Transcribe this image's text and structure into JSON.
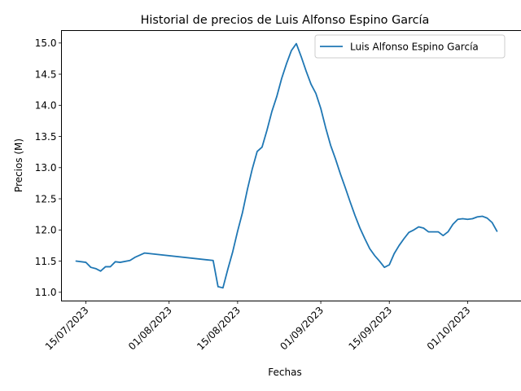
{
  "chart_data": {
    "type": "line",
    "title": "Historial de precios de Luis Alfonso Espino García",
    "xlabel": "Fechas",
    "ylabel": "Precios (M)",
    "ylim": [
      10.86,
      15.2
    ],
    "xlim": [
      "2023-07-10",
      "2023-10-12"
    ],
    "grid": false,
    "legend_position": "top-right",
    "x_ticks": [
      "2023-07-15",
      "2023-08-01",
      "2023-08-15",
      "2023-09-01",
      "2023-09-15",
      "2023-10-01"
    ],
    "x_tick_labels": [
      "15/07/2023",
      "01/08/2023",
      "15/08/2023",
      "01/09/2023",
      "15/09/2023",
      "01/10/2023"
    ],
    "y_ticks": [
      11.0,
      11.5,
      12.0,
      12.5,
      13.0,
      13.5,
      14.0,
      14.5,
      15.0
    ],
    "y_tick_labels": [
      "11.0",
      "11.5",
      "12.0",
      "12.5",
      "13.0",
      "13.5",
      "14.0",
      "14.5",
      "15.0"
    ],
    "series": [
      {
        "name": "Luis Alfonso Espino García",
        "color": "#1f77b4",
        "points": [
          [
            "2023-07-13",
            11.5
          ],
          [
            "2023-07-15",
            11.48
          ],
          [
            "2023-07-16",
            11.4
          ],
          [
            "2023-07-17",
            11.38
          ],
          [
            "2023-07-18",
            11.34
          ],
          [
            "2023-07-19",
            11.41
          ],
          [
            "2023-07-20",
            11.41
          ],
          [
            "2023-07-21",
            11.49
          ],
          [
            "2023-07-22",
            11.48
          ],
          [
            "2023-07-24",
            11.51
          ],
          [
            "2023-07-25",
            11.56
          ],
          [
            "2023-07-27",
            11.63
          ],
          [
            "2023-08-10",
            11.51
          ],
          [
            "2023-08-11",
            11.09
          ],
          [
            "2023-08-12",
            11.07
          ],
          [
            "2023-08-13",
            11.37
          ],
          [
            "2023-08-14",
            11.65
          ],
          [
            "2023-08-15",
            11.98
          ],
          [
            "2023-08-16",
            12.28
          ],
          [
            "2023-08-17",
            12.65
          ],
          [
            "2023-08-18",
            12.98
          ],
          [
            "2023-08-19",
            13.26
          ],
          [
            "2023-08-20",
            13.33
          ],
          [
            "2023-08-21",
            13.6
          ],
          [
            "2023-08-22",
            13.9
          ],
          [
            "2023-08-23",
            14.14
          ],
          [
            "2023-08-24",
            14.43
          ],
          [
            "2023-08-25",
            14.67
          ],
          [
            "2023-08-26",
            14.88
          ],
          [
            "2023-08-27",
            14.99
          ],
          [
            "2023-08-28",
            14.78
          ],
          [
            "2023-08-29",
            14.55
          ],
          [
            "2023-08-30",
            14.34
          ],
          [
            "2023-08-31",
            14.19
          ],
          [
            "2023-09-01",
            13.95
          ],
          [
            "2023-09-02",
            13.64
          ],
          [
            "2023-09-03",
            13.36
          ],
          [
            "2023-09-04",
            13.14
          ],
          [
            "2023-09-05",
            12.9
          ],
          [
            "2023-09-06",
            12.68
          ],
          [
            "2023-09-07",
            12.45
          ],
          [
            "2023-09-08",
            12.23
          ],
          [
            "2023-09-09",
            12.03
          ],
          [
            "2023-09-10",
            11.86
          ],
          [
            "2023-09-11",
            11.7
          ],
          [
            "2023-09-12",
            11.59
          ],
          [
            "2023-09-13",
            11.5
          ],
          [
            "2023-09-14",
            11.4
          ],
          [
            "2023-09-15",
            11.44
          ],
          [
            "2023-09-16",
            11.62
          ],
          [
            "2023-09-17",
            11.75
          ],
          [
            "2023-09-18",
            11.86
          ],
          [
            "2023-09-19",
            11.96
          ],
          [
            "2023-09-20",
            12.0
          ],
          [
            "2023-09-21",
            12.05
          ],
          [
            "2023-09-22",
            12.03
          ],
          [
            "2023-09-23",
            11.97
          ],
          [
            "2023-09-24",
            11.97
          ],
          [
            "2023-09-25",
            11.97
          ],
          [
            "2023-09-26",
            11.91
          ],
          [
            "2023-09-27",
            11.97
          ],
          [
            "2023-09-28",
            12.09
          ],
          [
            "2023-09-29",
            12.17
          ],
          [
            "2023-09-30",
            12.18
          ],
          [
            "2023-10-01",
            12.17
          ],
          [
            "2023-10-02",
            12.18
          ],
          [
            "2023-10-03",
            12.21
          ],
          [
            "2023-10-04",
            12.22
          ],
          [
            "2023-10-05",
            12.19
          ],
          [
            "2023-10-06",
            12.12
          ],
          [
            "2023-10-07",
            11.98
          ]
        ]
      }
    ]
  }
}
